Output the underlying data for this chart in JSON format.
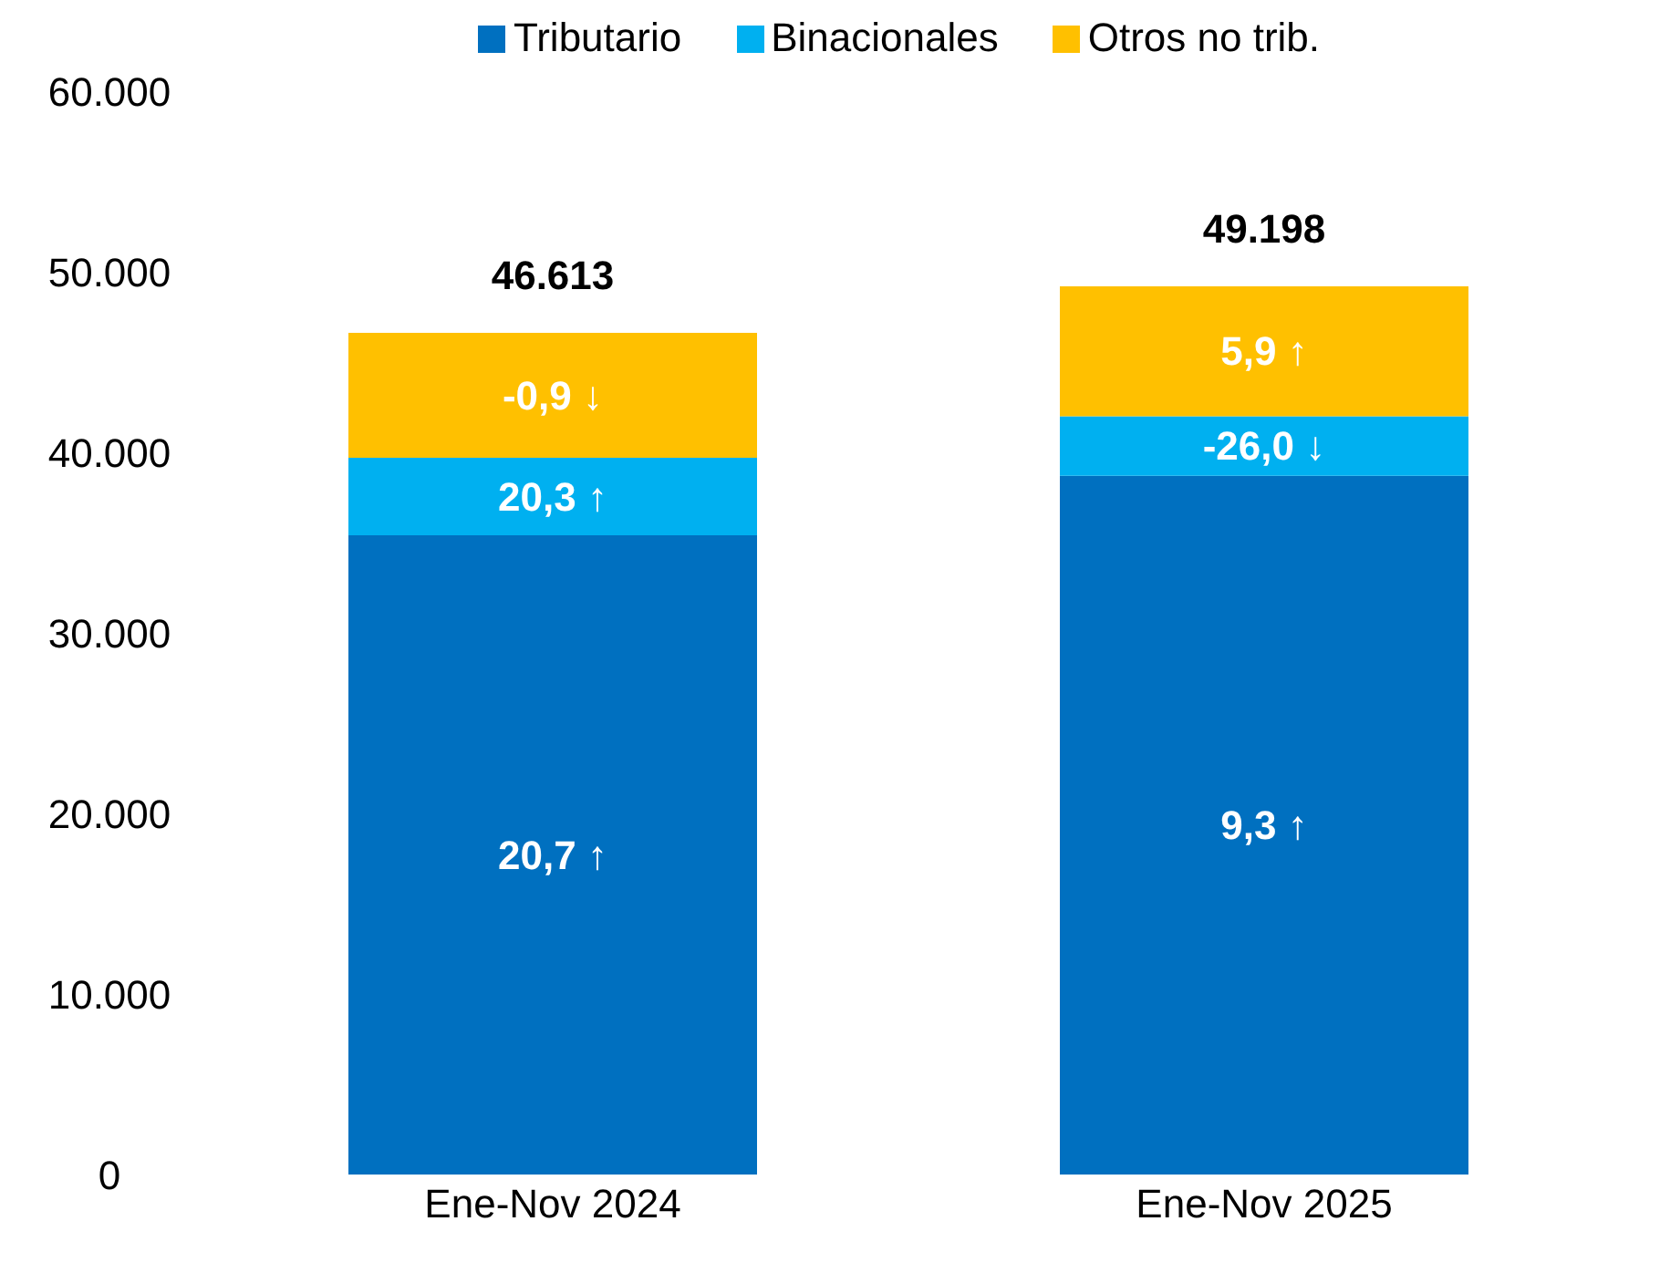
{
  "chart_data": {
    "type": "bar",
    "stacked": true,
    "categories": [
      "Ene-Nov 2024",
      "Ene-Nov 2025"
    ],
    "series": [
      {
        "name": "Tributario",
        "color": "#0070c0",
        "values": [
          35400,
          38700
        ]
      },
      {
        "name": "Binacionales",
        "color": "#00b0f0",
        "values": [
          4300,
          3300
        ]
      },
      {
        "name": "Otros no trib.",
        "color": "#ffc000",
        "values": [
          6913,
          7198
        ]
      }
    ],
    "totals": [
      "46.613",
      "49.198"
    ],
    "annotations": [
      "20,7 ↑",
      "9,3 ↑",
      "20,3 ↑",
      "-26,0 ↓",
      "-0,9 ↓",
      "5,9 ↑"
    ],
    "ylim": [
      0,
      60000
    ],
    "yticks": [
      {
        "value": 0,
        "label": "0"
      },
      {
        "value": 10000,
        "label": "10.000"
      },
      {
        "value": 20000,
        "label": "20.000"
      },
      {
        "value": 30000,
        "label": "30.000"
      },
      {
        "value": 40000,
        "label": "40.000"
      },
      {
        "value": 50000,
        "label": "50.000"
      },
      {
        "value": 60000,
        "label": "60.000"
      }
    ],
    "grid": false,
    "legend": "top"
  }
}
